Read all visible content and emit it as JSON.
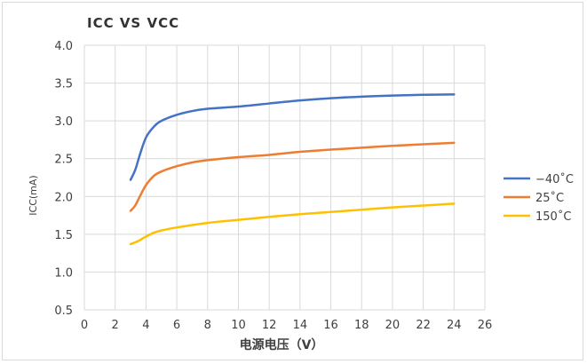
{
  "chart_data": {
    "type": "line",
    "title": "ICC VS VCC",
    "xlabel": "电源电压（V）",
    "ylabel": "ICC(mA)",
    "xlim": [
      0,
      26
    ],
    "ylim": [
      0.5,
      4.0
    ],
    "xticks": [
      "0",
      "2",
      "4",
      "6",
      "8",
      "10",
      "12",
      "14",
      "16",
      "18",
      "20",
      "22",
      "24",
      "26"
    ],
    "yticks": [
      "4.0",
      "3.5",
      "3.0",
      "2.5",
      "2.0",
      "1.5",
      "1.0",
      "0.5"
    ],
    "grid": true,
    "legend_position": "right",
    "series": [
      {
        "name": "−40˚C",
        "color": "#4472C4",
        "x": [
          3,
          3.3,
          3.6,
          4,
          4.5,
          5,
          6,
          7,
          8,
          10,
          12,
          14,
          16,
          18,
          20,
          22,
          24
        ],
        "y": [
          2.22,
          2.35,
          2.55,
          2.78,
          2.92,
          3.0,
          3.08,
          3.13,
          3.16,
          3.19,
          3.23,
          3.27,
          3.3,
          3.32,
          3.335,
          3.345,
          3.35
        ]
      },
      {
        "name": "25˚C",
        "color": "#ED7D31",
        "x": [
          3,
          3.3,
          3.6,
          4,
          4.5,
          5,
          6,
          7,
          8,
          10,
          12,
          14,
          16,
          18,
          20,
          22,
          24
        ],
        "y": [
          1.81,
          1.88,
          2.0,
          2.15,
          2.27,
          2.33,
          2.4,
          2.45,
          2.48,
          2.52,
          2.55,
          2.59,
          2.62,
          2.645,
          2.67,
          2.69,
          2.71
        ]
      },
      {
        "name": "150˚C",
        "color": "#FFC000",
        "x": [
          3,
          3.5,
          4,
          4.5,
          5,
          6,
          8,
          10,
          12,
          14,
          16,
          18,
          20,
          22,
          24
        ],
        "y": [
          1.37,
          1.41,
          1.47,
          1.52,
          1.55,
          1.59,
          1.65,
          1.69,
          1.73,
          1.765,
          1.795,
          1.825,
          1.855,
          1.88,
          1.905
        ]
      }
    ]
  }
}
